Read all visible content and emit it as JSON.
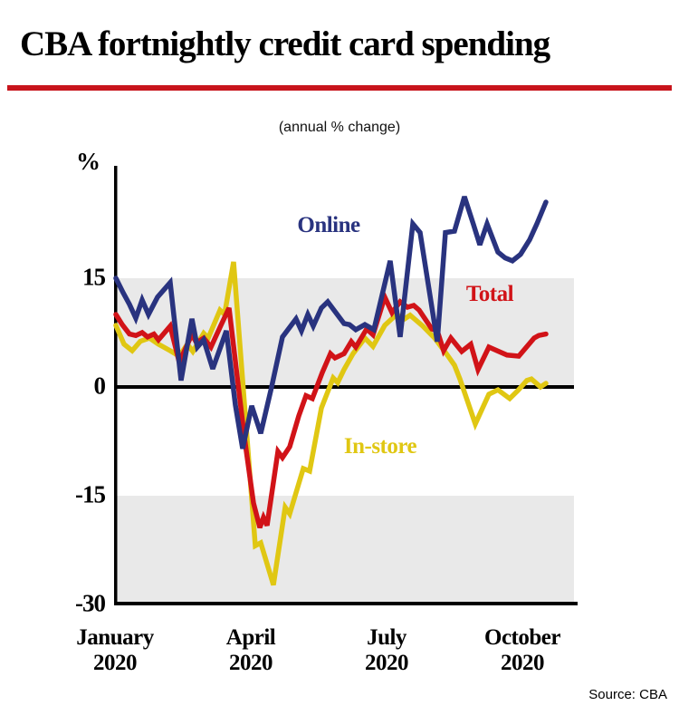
{
  "header": {
    "title": "CBA fortnightly credit card spending",
    "subtitle": "(annual % change)"
  },
  "source": "Source: CBA",
  "colors": {
    "online": "#29337f",
    "total": "#d11318",
    "in_store": "#e0c713",
    "band_gray": "#e9e9e9",
    "rule_red": "#c8141c",
    "axis_black": "#000000"
  },
  "chart_data": {
    "type": "line",
    "unit_label": "%",
    "ylabel": "%",
    "ylim": [
      -30.5,
      30.5
    ],
    "y_ticks": [
      15,
      0,
      -15,
      -30
    ],
    "shaded_bands": [
      [
        0,
        15
      ],
      [
        -30,
        -15
      ]
    ],
    "x_axis": {
      "tick_months": [
        0,
        3,
        6,
        9
      ],
      "tick_labels": [
        [
          "January",
          "2020"
        ],
        [
          "April",
          "2020"
        ],
        [
          "July",
          "2020"
        ],
        [
          "October",
          "2020"
        ]
      ]
    },
    "series": [
      {
        "name": "In-store",
        "color": "#e0c713",
        "points": [
          [
            0.0,
            8.5
          ],
          [
            0.18,
            5.9
          ],
          [
            0.36,
            5.0
          ],
          [
            0.54,
            6.3
          ],
          [
            0.74,
            6.75
          ],
          [
            0.94,
            5.9
          ],
          [
            1.2,
            5.0
          ],
          [
            1.4,
            4.25
          ],
          [
            1.58,
            5.9
          ],
          [
            1.7,
            4.9
          ],
          [
            1.94,
            7.4
          ],
          [
            2.04,
            6.75
          ],
          [
            2.3,
            10.6
          ],
          [
            2.4,
            10.0
          ],
          [
            2.6,
            17.25
          ],
          [
            3.08,
            -21.9
          ],
          [
            3.2,
            -21.5
          ],
          [
            3.48,
            -27.3
          ],
          [
            3.74,
            -16.6
          ],
          [
            3.84,
            -17.5
          ],
          [
            4.14,
            -11.25
          ],
          [
            4.28,
            -11.6
          ],
          [
            4.54,
            -2.9
          ],
          [
            4.8,
            1.25
          ],
          [
            4.9,
            0.6
          ],
          [
            5.04,
            2.4
          ],
          [
            5.24,
            4.6
          ],
          [
            5.4,
            5.9
          ],
          [
            5.5,
            6.75
          ],
          [
            5.68,
            5.6
          ],
          [
            5.94,
            8.5
          ],
          [
            6.2,
            10.0
          ],
          [
            6.38,
            9.4
          ],
          [
            6.5,
            9.9
          ],
          [
            6.78,
            8.4
          ],
          [
            7.04,
            6.75
          ],
          [
            7.3,
            4.6
          ],
          [
            7.48,
            3.0
          ],
          [
            7.6,
            1.1
          ],
          [
            7.94,
            -5.1
          ],
          [
            8.24,
            -1.0
          ],
          [
            8.44,
            -0.4
          ],
          [
            8.7,
            -1.6
          ],
          [
            8.88,
            -0.5
          ],
          [
            9.08,
            0.9
          ],
          [
            9.18,
            1.1
          ],
          [
            9.38,
            0.0
          ],
          [
            9.5,
            0.5
          ]
        ]
      },
      {
        "name": "Total",
        "color": "#d11318",
        "points": [
          [
            0.0,
            10.0
          ],
          [
            0.14,
            8.6
          ],
          [
            0.3,
            7.3
          ],
          [
            0.44,
            7.1
          ],
          [
            0.58,
            7.5
          ],
          [
            0.7,
            6.9
          ],
          [
            0.84,
            7.3
          ],
          [
            0.94,
            6.5
          ],
          [
            1.2,
            8.4
          ],
          [
            1.4,
            3.4
          ],
          [
            1.68,
            7.25
          ],
          [
            1.78,
            6.1
          ],
          [
            1.94,
            6.75
          ],
          [
            2.1,
            5.5
          ],
          [
            2.32,
            8.5
          ],
          [
            2.5,
            10.9
          ],
          [
            2.84,
            -7.0
          ],
          [
            3.04,
            -16.0
          ],
          [
            3.18,
            -19.4
          ],
          [
            3.26,
            -18.0
          ],
          [
            3.34,
            -19.1
          ],
          [
            3.58,
            -8.9
          ],
          [
            3.68,
            -9.75
          ],
          [
            3.84,
            -8.25
          ],
          [
            4.04,
            -4.0
          ],
          [
            4.2,
            -1.2
          ],
          [
            4.34,
            -1.6
          ],
          [
            4.56,
            2.0
          ],
          [
            4.74,
            4.6
          ],
          [
            4.84,
            4.0
          ],
          [
            5.04,
            4.6
          ],
          [
            5.2,
            6.25
          ],
          [
            5.3,
            5.5
          ],
          [
            5.54,
            8.0
          ],
          [
            5.68,
            7.2
          ],
          [
            5.94,
            12.4
          ],
          [
            6.1,
            10.25
          ],
          [
            6.28,
            11.75
          ],
          [
            6.44,
            11.0
          ],
          [
            6.58,
            11.25
          ],
          [
            6.7,
            10.6
          ],
          [
            6.98,
            8.0
          ],
          [
            7.1,
            7.75
          ],
          [
            7.24,
            5.0
          ],
          [
            7.4,
            6.75
          ],
          [
            7.64,
            4.9
          ],
          [
            7.84,
            5.9
          ],
          [
            8.0,
            2.4
          ],
          [
            8.24,
            5.5
          ],
          [
            8.64,
            4.4
          ],
          [
            8.9,
            4.25
          ],
          [
            9.24,
            6.75
          ],
          [
            9.34,
            7.1
          ],
          [
            9.5,
            7.3
          ]
        ]
      },
      {
        "name": "Online",
        "color": "#29337f",
        "points": [
          [
            0.0,
            15.0
          ],
          [
            0.16,
            13.0
          ],
          [
            0.3,
            11.4
          ],
          [
            0.44,
            9.5
          ],
          [
            0.58,
            12.0
          ],
          [
            0.72,
            10.0
          ],
          [
            0.92,
            12.4
          ],
          [
            1.2,
            14.4
          ],
          [
            1.44,
            0.9
          ],
          [
            1.68,
            9.4
          ],
          [
            1.8,
            5.5
          ],
          [
            1.94,
            6.5
          ],
          [
            2.14,
            2.5
          ],
          [
            2.44,
            7.75
          ],
          [
            2.64,
            -2.5
          ],
          [
            2.8,
            -8.5
          ],
          [
            3.0,
            -2.6
          ],
          [
            3.2,
            -6.4
          ],
          [
            3.44,
            0.0
          ],
          [
            3.68,
            6.9
          ],
          [
            3.98,
            9.4
          ],
          [
            4.1,
            7.75
          ],
          [
            4.24,
            10.0
          ],
          [
            4.36,
            8.4
          ],
          [
            4.54,
            10.9
          ],
          [
            4.68,
            11.75
          ],
          [
            5.04,
            8.75
          ],
          [
            5.16,
            8.6
          ],
          [
            5.3,
            7.9
          ],
          [
            5.5,
            8.6
          ],
          [
            5.7,
            7.9
          ],
          [
            6.06,
            17.4
          ],
          [
            6.28,
            6.9
          ],
          [
            6.56,
            22.5
          ],
          [
            6.72,
            21.3
          ],
          [
            7.1,
            6.25
          ],
          [
            7.28,
            21.3
          ],
          [
            7.48,
            21.5
          ],
          [
            7.7,
            26.25
          ],
          [
            7.9,
            22.4
          ],
          [
            8.04,
            19.6
          ],
          [
            8.2,
            22.5
          ],
          [
            8.44,
            18.6
          ],
          [
            8.6,
            17.8
          ],
          [
            8.76,
            17.4
          ],
          [
            8.94,
            18.3
          ],
          [
            9.14,
            20.3
          ],
          [
            9.3,
            22.5
          ],
          [
            9.5,
            25.5
          ]
        ]
      }
    ],
    "annotations": [
      {
        "text": "Online",
        "month": 4.7,
        "value": 22.3,
        "color": "#29337f"
      },
      {
        "text": "Total",
        "month": 8.26,
        "value": 12.8,
        "color": "#d11318"
      },
      {
        "text": "In-store",
        "month": 5.84,
        "value": -8.2,
        "color": "#e0c713"
      }
    ]
  }
}
